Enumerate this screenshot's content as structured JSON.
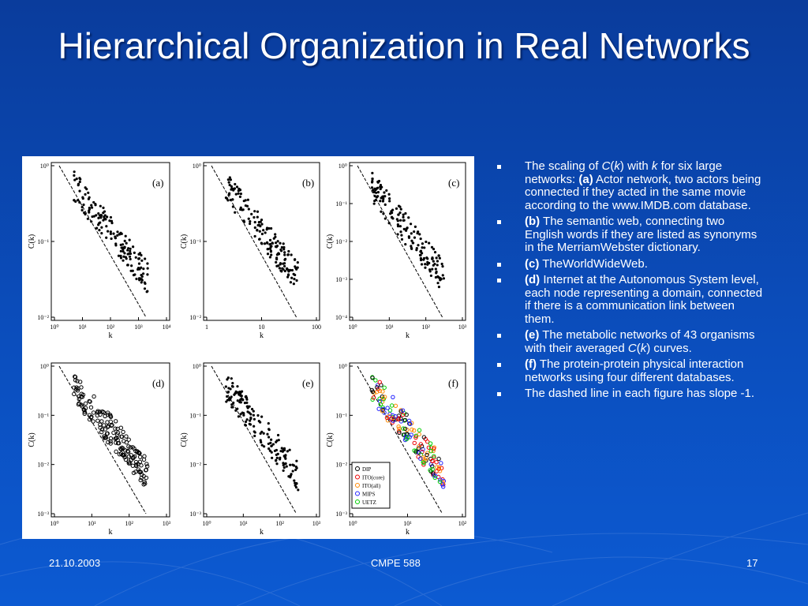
{
  "title": "Hierarchical Organization in Real Networks",
  "bullets": [
    [
      "The scaling of ",
      "C",
      "(",
      "k",
      ") with ",
      "k",
      " for six large networks: ",
      "(a)",
      " Actor network, two actors being connected if they acted in the same movie according to the www.IMDB.com database."
    ],
    [
      "(b)",
      " The semantic web, connecting two English words if they are listed as synonyms in the MerriamWebster dictionary."
    ],
    [
      "(c)",
      " TheWorldWideWeb."
    ],
    [
      "(d)",
      " Internet at the Autonomous System level, each node representing a domain, connected if there is a communication link between them."
    ],
    [
      "(e)",
      " The metabolic networks of 43 organisms with their averaged ",
      "C",
      "(",
      "k",
      ") curves."
    ],
    [
      "(f)",
      " The protein-protein physical interaction networks using four different databases."
    ],
    [
      " The dashed line in each figure has slope -1."
    ]
  ],
  "figure": {
    "y_label": "C(k)",
    "x_label": "k",
    "panels": [
      {
        "label": "(a)",
        "yticks": [
          "10⁰",
          "10⁻¹",
          "10⁻²"
        ],
        "xticks": [
          "10⁰",
          "10¹",
          "10²",
          "10³",
          "10⁴"
        ]
      },
      {
        "label": "(b)",
        "yticks": [
          "10⁰",
          "10⁻¹",
          "10⁻²"
        ],
        "xticks": [
          "1",
          "10",
          "100"
        ]
      },
      {
        "label": "(c)",
        "yticks": [
          "10⁰",
          "10⁻¹",
          "10⁻²",
          "10⁻³",
          "10⁻⁴"
        ],
        "xticks": [
          "10⁰",
          "10¹",
          "10²",
          "10³"
        ]
      },
      {
        "label": "(d)",
        "yticks": [
          "10⁰",
          "10⁻¹",
          "10⁻²",
          "10⁻³"
        ],
        "xticks": [
          "10⁰",
          "10¹",
          "10²",
          "10³"
        ]
      },
      {
        "label": "(e)",
        "yticks": [
          "10⁰",
          "10⁻¹",
          "10⁻²",
          "10⁻³"
        ],
        "xticks": [
          "10⁰",
          "10¹",
          "10²",
          "10³"
        ]
      },
      {
        "label": "(f)",
        "yticks": [
          "10⁰",
          "10⁻¹",
          "10⁻²",
          "10⁻³"
        ],
        "xticks": [
          "10⁰",
          "10¹",
          "10²"
        ]
      }
    ],
    "legend": [
      "DIP",
      "ITO(core)",
      "ITO(all)",
      "MIPS",
      "UETZ"
    ]
  },
  "footer": {
    "date": "21.10.2003",
    "course": "CMPE 588",
    "page": "17"
  }
}
